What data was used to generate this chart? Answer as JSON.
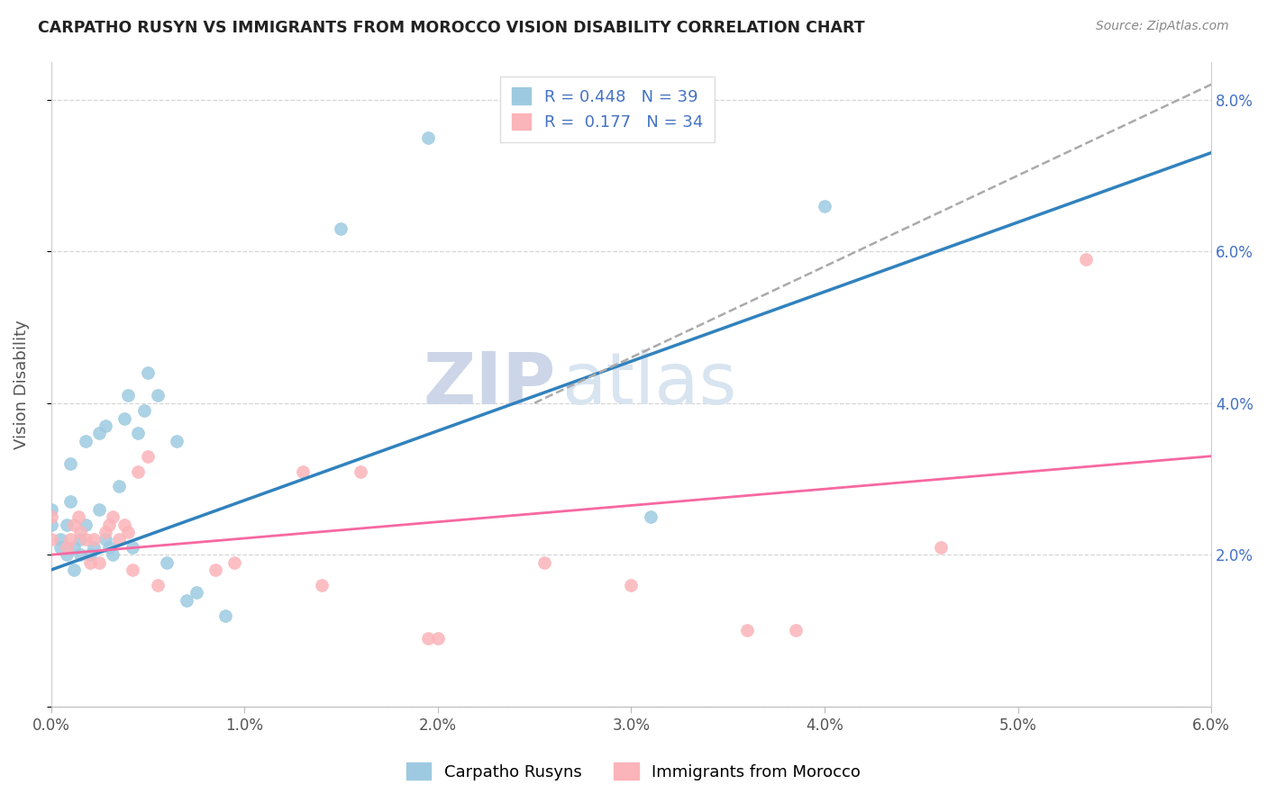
{
  "title": "CARPATHO RUSYN VS IMMIGRANTS FROM MOROCCO VISION DISABILITY CORRELATION CHART",
  "source": "Source: ZipAtlas.com",
  "ylabel": "Vision Disability",
  "xlim": [
    0.0,
    6.0
  ],
  "ylim": [
    0.0,
    8.5
  ],
  "xticks": [
    0.0,
    1.0,
    2.0,
    3.0,
    4.0,
    5.0,
    6.0
  ],
  "yticks": [
    0.0,
    2.0,
    4.0,
    6.0,
    8.0
  ],
  "xtick_labels": [
    "0.0%",
    "1.0%",
    "2.0%",
    "3.0%",
    "4.0%",
    "5.0%",
    "6.0%"
  ],
  "ytick_right_labels": [
    "",
    "2.0%",
    "4.0%",
    "6.0%",
    "8.0%"
  ],
  "blue_R": 0.448,
  "blue_N": 39,
  "pink_R": 0.177,
  "pink_N": 34,
  "blue_color": "#9ecae1",
  "pink_color": "#fbb4b9",
  "blue_line_color": "#3182bd",
  "pink_line_color": "#f768a1",
  "dashed_line_color": "#aaaaaa",
  "watermark_zip": "ZIP",
  "watermark_atlas": "atlas",
  "legend_label_blue": "Carpatho Rusyns",
  "legend_label_pink": "Immigrants from Morocco",
  "blue_scatter_x": [
    0.0,
    0.0,
    0.05,
    0.05,
    0.08,
    0.08,
    0.1,
    0.1,
    0.12,
    0.12,
    0.15,
    0.15,
    0.18,
    0.18,
    0.2,
    0.22,
    0.25,
    0.25,
    0.28,
    0.28,
    0.3,
    0.32,
    0.35,
    0.38,
    0.4,
    0.42,
    0.45,
    0.48,
    0.5,
    0.55,
    0.6,
    0.65,
    0.7,
    0.75,
    0.9,
    1.5,
    1.95,
    3.1,
    4.0
  ],
  "blue_scatter_y": [
    2.6,
    2.4,
    2.2,
    2.1,
    2.0,
    2.4,
    3.2,
    2.7,
    1.8,
    2.1,
    2.2,
    2.0,
    2.4,
    3.5,
    2.0,
    2.1,
    2.6,
    3.6,
    2.2,
    3.7,
    2.1,
    2.0,
    2.9,
    3.8,
    4.1,
    2.1,
    3.6,
    3.9,
    4.4,
    4.1,
    1.9,
    3.5,
    1.4,
    1.5,
    1.2,
    6.3,
    7.5,
    2.5,
    6.6
  ],
  "pink_scatter_x": [
    0.0,
    0.0,
    0.08,
    0.1,
    0.12,
    0.14,
    0.15,
    0.18,
    0.2,
    0.22,
    0.25,
    0.28,
    0.3,
    0.32,
    0.35,
    0.38,
    0.4,
    0.42,
    0.45,
    0.5,
    0.55,
    0.85,
    0.95,
    1.3,
    1.4,
    1.6,
    1.95,
    2.0,
    2.55,
    3.0,
    3.6,
    3.85,
    4.6,
    5.35
  ],
  "pink_scatter_y": [
    2.2,
    2.5,
    2.1,
    2.2,
    2.4,
    2.5,
    2.3,
    2.2,
    1.9,
    2.2,
    1.9,
    2.3,
    2.4,
    2.5,
    2.2,
    2.4,
    2.3,
    1.8,
    3.1,
    3.3,
    1.6,
    1.8,
    1.9,
    3.1,
    1.6,
    3.1,
    0.9,
    0.9,
    1.9,
    1.6,
    1.0,
    1.0,
    2.1,
    5.9
  ],
  "blue_line_x": [
    0.0,
    6.0
  ],
  "blue_line_y": [
    1.8,
    7.3
  ],
  "pink_line_x": [
    0.0,
    6.0
  ],
  "pink_line_y": [
    2.0,
    3.3
  ],
  "dashed_line_x": [
    2.5,
    6.0
  ],
  "dashed_line_y": [
    4.0,
    8.2
  ]
}
